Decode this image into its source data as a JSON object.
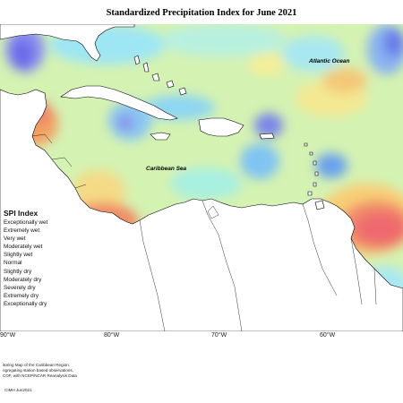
{
  "title": "Standardized Precipitation Index for June 2021",
  "map_labels": {
    "atlantic": "Atlantic Ocean",
    "caribbean": "Caribbean Sea"
  },
  "legend": {
    "title": "SPI Index",
    "items": [
      {
        "label": "Exceptionally wet",
        "color": "#7b2fbe"
      },
      {
        "label": "Extremely wet",
        "color": "#5a6ce0"
      },
      {
        "label": "Very wet",
        "color": "#5aa8f0"
      },
      {
        "label": "Moderately wet",
        "color": "#7fd4f4"
      },
      {
        "label": "Slightly wet",
        "color": "#a8f0d6"
      },
      {
        "label": "Normal",
        "color": "#d6f7a8"
      },
      {
        "label": "Slightly dry",
        "color": "#f6f29a"
      },
      {
        "label": "Moderately dry",
        "color": "#f8cf72"
      },
      {
        "label": "Severely dry",
        "color": "#f7a45e"
      },
      {
        "label": "Extremely dry",
        "color": "#f27166"
      },
      {
        "label": "Exceptionally dry",
        "color": "#e2445c"
      }
    ]
  },
  "axis_labels": [
    "90°W",
    "80°W",
    "70°W",
    "60°W"
  ],
  "footer": {
    "lines": [
      "itoring Map of the Caribbean Region.",
      "ngregating station based observations,",
      "COF, with NCEP/NCAR Reanalysis Data"
    ],
    "date": "CIMH Jun2021"
  },
  "colors": {
    "land": "#ffffff",
    "ocean_base": "#d4f2b2",
    "coast": "#000000"
  }
}
